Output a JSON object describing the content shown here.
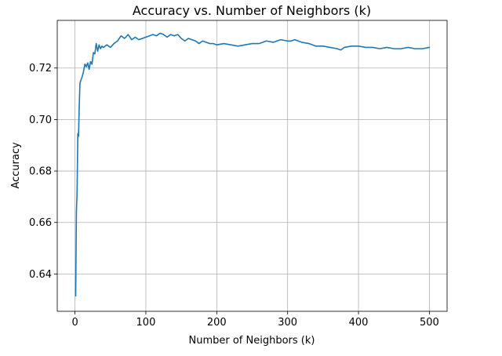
{
  "chart_data": {
    "type": "line",
    "title": "Accuracy vs. Number of Neighbors (k)",
    "xlabel": "Number of Neighbors (k)",
    "ylabel": "Accuracy",
    "xlim": [
      -25,
      525
    ],
    "ylim": [
      0.6255,
      0.7385
    ],
    "xticks": [
      0,
      100,
      200,
      300,
      400,
      500
    ],
    "xtick_labels": [
      "0",
      "100",
      "200",
      "300",
      "400",
      "500"
    ],
    "yticks": [
      0.64,
      0.66,
      0.68,
      0.7,
      0.72
    ],
    "ytick_labels": [
      "0.64",
      "0.66",
      "0.68",
      "0.70",
      "0.72"
    ],
    "grid": true,
    "series": [
      {
        "color": "#1f77b4",
        "x": [
          1,
          2,
          3,
          4,
          5,
          6,
          7,
          8,
          10,
          12,
          14,
          16,
          18,
          20,
          22,
          24,
          26,
          28,
          30,
          32,
          34,
          36,
          38,
          40,
          45,
          50,
          55,
          60,
          65,
          70,
          75,
          80,
          85,
          90,
          95,
          100,
          105,
          110,
          115,
          120,
          125,
          130,
          135,
          140,
          145,
          150,
          155,
          160,
          165,
          170,
          175,
          180,
          185,
          190,
          195,
          200,
          210,
          220,
          230,
          240,
          250,
          260,
          270,
          280,
          290,
          300,
          305,
          310,
          315,
          320,
          330,
          340,
          350,
          360,
          370,
          375,
          380,
          390,
          400,
          410,
          420,
          430,
          440,
          450,
          460,
          470,
          480,
          490,
          500
        ],
        "y": [
          0.6315,
          0.664,
          0.672,
          0.6945,
          0.6935,
          0.705,
          0.714,
          0.715,
          0.7165,
          0.7185,
          0.7215,
          0.7205,
          0.722,
          0.7195,
          0.7225,
          0.7215,
          0.726,
          0.7255,
          0.7295,
          0.7265,
          0.729,
          0.7275,
          0.7285,
          0.728,
          0.729,
          0.728,
          0.7295,
          0.7305,
          0.7325,
          0.7315,
          0.733,
          0.731,
          0.732,
          0.731,
          0.7315,
          0.732,
          0.7325,
          0.733,
          0.7325,
          0.7335,
          0.733,
          0.732,
          0.733,
          0.7325,
          0.733,
          0.7315,
          0.7305,
          0.7315,
          0.731,
          0.7305,
          0.7295,
          0.7305,
          0.73,
          0.7295,
          0.7295,
          0.729,
          0.7295,
          0.729,
          0.7285,
          0.729,
          0.7295,
          0.7295,
          0.7305,
          0.73,
          0.731,
          0.7305,
          0.7305,
          0.731,
          0.7305,
          0.73,
          0.7295,
          0.7285,
          0.7285,
          0.728,
          0.7275,
          0.727,
          0.728,
          0.7285,
          0.7285,
          0.728,
          0.728,
          0.7275,
          0.728,
          0.7275,
          0.7275,
          0.728,
          0.7275,
          0.7275,
          0.728
        ]
      }
    ]
  }
}
